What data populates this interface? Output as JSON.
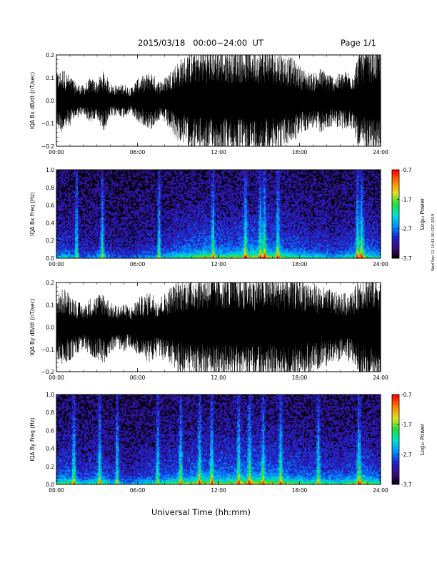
{
  "header": {
    "title": "2015/03/18   00:00−24:00  UT",
    "page": "Page 1/1"
  },
  "footer": {
    "xaxis_title": "Universal Time (hh:mm)",
    "side_note": "Wed Sep 11 14:41:30 CDT 2019"
  },
  "colorbar": {
    "label": "Log₁₀ Power",
    "ticks": [
      "-0.7",
      "-1.7",
      "-2.7",
      "-3.7"
    ],
    "colors": [
      "#000000",
      "#3b0a78",
      "#2020c8",
      "#0090ff",
      "#00e0d0",
      "#20e040",
      "#e0e020",
      "#ff8000",
      "#ff0000"
    ]
  },
  "chart_data": [
    {
      "type": "line",
      "ylabel": "IQA Bx dB/dt (nT/sec)",
      "ylim": [
        -0.2,
        0.2
      ],
      "yticks": [
        "0.2",
        "0.1",
        "0.0",
        "−0.1",
        "−0.2"
      ],
      "xticks": [
        "00:00",
        "06:00",
        "12:00",
        "18:00",
        "24:00"
      ],
      "xlim": [
        0,
        24
      ],
      "series": [
        {
          "color": "#000000",
          "hours": [
            0,
            0.5,
            1,
            1.5,
            2,
            2.5,
            3,
            3.5,
            4,
            4.5,
            5,
            5.5,
            6,
            6.5,
            7,
            7.5,
            8,
            8.5,
            9,
            9.5,
            10,
            10.5,
            11,
            11.5,
            12,
            12.5,
            13,
            13.5,
            14,
            14.5,
            15,
            15.5,
            16,
            16.5,
            17,
            17.5,
            18,
            18.5,
            19,
            19.5,
            20,
            20.5,
            21,
            21.5,
            22,
            22.5,
            23,
            23.5,
            24
          ],
          "amplitude": [
            0.11,
            0.13,
            0.1,
            0.07,
            0.06,
            0.09,
            0.08,
            0.12,
            0.07,
            0.06,
            0.07,
            0.05,
            0.09,
            0.1,
            0.12,
            0.08,
            0.09,
            0.13,
            0.16,
            0.18,
            0.2,
            0.21,
            0.22,
            0.22,
            0.22,
            0.21,
            0.22,
            0.22,
            0.22,
            0.22,
            0.21,
            0.22,
            0.21,
            0.2,
            0.18,
            0.17,
            0.14,
            0.12,
            0.11,
            0.13,
            0.12,
            0.1,
            0.11,
            0.12,
            0.12,
            0.22,
            0.22,
            0.22,
            0.22
          ]
        }
      ]
    },
    {
      "type": "heatmap",
      "ylabel": "IQA Bx Freq (Hz)",
      "ylim": [
        0.0,
        1.0
      ],
      "yticks": [
        "1.0",
        "0.8",
        "0.6",
        "0.4",
        "0.2",
        "0.0"
      ],
      "xticks": [
        "00:00",
        "06:00",
        "12:00",
        "18:00",
        "24:00"
      ],
      "xlim": [
        0,
        24
      ],
      "zlabel": "Log₁₀ Power",
      "zlim": [
        -3.7,
        -0.7
      ],
      "hours": [
        0,
        0.5,
        1,
        1.5,
        2,
        2.5,
        3,
        3.5,
        4,
        4.5,
        5,
        5.5,
        6,
        6.5,
        7,
        7.5,
        8,
        8.5,
        9,
        9.5,
        10,
        10.5,
        11,
        11.5,
        12,
        12.5,
        13,
        13.5,
        14,
        14.5,
        15,
        15.5,
        16,
        16.5,
        17,
        17.5,
        18,
        18.5,
        19,
        19.5,
        20,
        20.5,
        21,
        21.5,
        22,
        22.5,
        23,
        23.5,
        24
      ],
      "activity": [
        0.45,
        0.5,
        0.45,
        0.35,
        0.3,
        0.35,
        0.4,
        0.45,
        0.3,
        0.3,
        0.3,
        0.25,
        0.35,
        0.4,
        0.45,
        0.4,
        0.5,
        0.55,
        0.6,
        0.65,
        0.7,
        0.75,
        0.85,
        0.7,
        0.75,
        0.7,
        0.75,
        0.8,
        0.85,
        0.85,
        0.8,
        0.85,
        0.8,
        0.75,
        0.7,
        0.65,
        0.6,
        0.55,
        0.5,
        0.55,
        0.5,
        0.45,
        0.5,
        0.55,
        0.6,
        0.9,
        0.7,
        0.6,
        0.55
      ],
      "bursts": [
        1.5,
        3.4,
        7.6,
        11.6,
        14.0,
        15.1,
        15.4,
        16.4,
        22.3,
        22.6
      ]
    },
    {
      "type": "line",
      "ylabel": "IQA By dB/dt (nT/sec)",
      "ylim": [
        -0.2,
        0.2
      ],
      "yticks": [
        "0.2",
        "0.1",
        "0.0",
        "−0.1",
        "−0.2"
      ],
      "xticks": [
        "00:00",
        "06:00",
        "12:00",
        "18:00",
        "24:00"
      ],
      "xlim": [
        0,
        24
      ],
      "series": [
        {
          "color": "#000000",
          "hours": [
            0,
            0.5,
            1,
            1.5,
            2,
            2.5,
            3,
            3.5,
            4,
            4.5,
            5,
            5.5,
            6,
            6.5,
            7,
            7.5,
            8,
            8.5,
            9,
            9.5,
            10,
            10.5,
            11,
            11.5,
            12,
            12.5,
            13,
            13.5,
            14,
            14.5,
            15,
            15.5,
            16,
            16.5,
            17,
            17.5,
            18,
            18.5,
            19,
            19.5,
            20,
            20.5,
            21,
            21.5,
            22,
            22.5,
            23,
            23.5,
            24
          ],
          "amplitude": [
            0.13,
            0.16,
            0.14,
            0.11,
            0.09,
            0.12,
            0.13,
            0.15,
            0.1,
            0.09,
            0.1,
            0.08,
            0.12,
            0.13,
            0.15,
            0.12,
            0.14,
            0.17,
            0.19,
            0.2,
            0.21,
            0.22,
            0.22,
            0.22,
            0.22,
            0.22,
            0.22,
            0.22,
            0.22,
            0.22,
            0.22,
            0.22,
            0.22,
            0.22,
            0.22,
            0.22,
            0.21,
            0.2,
            0.18,
            0.17,
            0.16,
            0.15,
            0.14,
            0.14,
            0.15,
            0.22,
            0.22,
            0.22,
            0.22
          ]
        }
      ]
    },
    {
      "type": "heatmap",
      "ylabel": "IQA By Freq (Hz)",
      "ylim": [
        0.0,
        1.0
      ],
      "yticks": [
        "1.0",
        "0.8",
        "0.6",
        "0.4",
        "0.2",
        "0.0"
      ],
      "xticks": [
        "00:00",
        "06:00",
        "12:00",
        "18:00",
        "24:00"
      ],
      "xlim": [
        0,
        24
      ],
      "zlabel": "Log₁₀ Power",
      "zlim": [
        -3.7,
        -0.7
      ],
      "hours": [
        0,
        0.5,
        1,
        1.5,
        2,
        2.5,
        3,
        3.5,
        4,
        4.5,
        5,
        5.5,
        6,
        6.5,
        7,
        7.5,
        8,
        8.5,
        9,
        9.5,
        10,
        10.5,
        11,
        11.5,
        12,
        12.5,
        13,
        13.5,
        14,
        14.5,
        15,
        15.5,
        16,
        16.5,
        17,
        17.5,
        18,
        18.5,
        19,
        19.5,
        20,
        20.5,
        21,
        21.5,
        22,
        22.5,
        23,
        23.5,
        24
      ],
      "activity": [
        0.6,
        0.7,
        0.7,
        0.55,
        0.45,
        0.55,
        0.6,
        0.65,
        0.45,
        0.45,
        0.4,
        0.35,
        0.45,
        0.5,
        0.55,
        0.5,
        0.6,
        0.65,
        0.7,
        0.7,
        0.75,
        0.8,
        0.85,
        0.75,
        0.8,
        0.75,
        0.8,
        0.85,
        0.9,
        0.9,
        0.85,
        0.85,
        0.85,
        0.8,
        0.75,
        0.7,
        0.7,
        0.65,
        0.65,
        0.65,
        0.6,
        0.6,
        0.6,
        0.65,
        0.7,
        0.9,
        0.75,
        0.65,
        0.6
      ],
      "bursts": [
        1.3,
        3.2,
        4.5,
        7.5,
        9.2,
        10.6,
        11.5,
        13.5,
        14.3,
        15.3,
        16.6,
        19.4,
        22.4
      ]
    }
  ]
}
